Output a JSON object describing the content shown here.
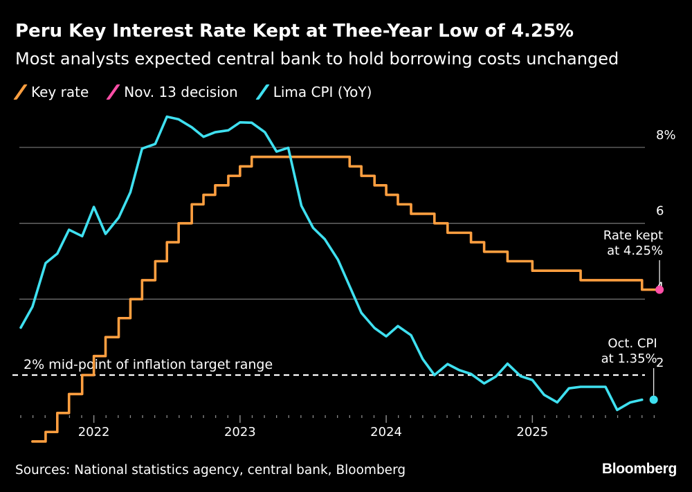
{
  "title": "Peru Key Interest Rate Kept at Thee-Year Low of 4.25%",
  "subtitle": "Most analysts expected central bank to hold borrowing costs unchanged",
  "source": "Sources: National statistics agency, central bank, Bloomberg",
  "brand": "Bloomberg",
  "colors": {
    "key_rate": "#ff9f40",
    "decision": "#ff4fa7",
    "cpi": "#3fe0f0",
    "grid": "#6e6e6e",
    "target_line": "#ffffff"
  },
  "chart_data": {
    "type": "line",
    "xlim": [
      2021.5,
      2025.95
    ],
    "ylim": [
      0.6,
      8.9
    ],
    "y_ticks": [
      {
        "value": 8,
        "label": "8%"
      },
      {
        "value": 6,
        "label": "6"
      },
      {
        "value": 4,
        "label": "4"
      },
      {
        "value": 2,
        "label": "2"
      }
    ],
    "x_ticks": [
      {
        "value": 2022,
        "label": "2022"
      },
      {
        "value": 2023,
        "label": "2023"
      },
      {
        "value": 2024,
        "label": "2024"
      },
      {
        "value": 2025,
        "label": "2025"
      }
    ],
    "series": [
      {
        "name": "Key rate",
        "color": "#ff9f40",
        "step": true,
        "points": [
          [
            2021.58,
            0.25
          ],
          [
            2021.67,
            0.5
          ],
          [
            2021.75,
            1.0
          ],
          [
            2021.83,
            1.5
          ],
          [
            2021.92,
            2.0
          ],
          [
            2022.0,
            2.5
          ],
          [
            2022.08,
            3.0
          ],
          [
            2022.17,
            3.5
          ],
          [
            2022.25,
            4.0
          ],
          [
            2022.33,
            4.5
          ],
          [
            2022.42,
            5.0
          ],
          [
            2022.5,
            5.5
          ],
          [
            2022.58,
            6.0
          ],
          [
            2022.67,
            6.5
          ],
          [
            2022.75,
            6.75
          ],
          [
            2022.83,
            7.0
          ],
          [
            2022.92,
            7.25
          ],
          [
            2023.0,
            7.5
          ],
          [
            2023.08,
            7.75
          ],
          [
            2023.17,
            7.75
          ],
          [
            2023.67,
            7.75
          ],
          [
            2023.75,
            7.5
          ],
          [
            2023.83,
            7.25
          ],
          [
            2023.92,
            7.0
          ],
          [
            2024.0,
            6.75
          ],
          [
            2024.08,
            6.5
          ],
          [
            2024.17,
            6.25
          ],
          [
            2024.33,
            6.0
          ],
          [
            2024.42,
            5.75
          ],
          [
            2024.58,
            5.5
          ],
          [
            2024.67,
            5.25
          ],
          [
            2024.83,
            5.0
          ],
          [
            2025.0,
            4.75
          ],
          [
            2025.33,
            4.5
          ],
          [
            2025.75,
            4.25
          ],
          [
            2025.87,
            4.25
          ]
        ]
      },
      {
        "name": "Lima CPI (YoY)",
        "color": "#3fe0f0",
        "step": false,
        "points": [
          [
            2021.5,
            3.25
          ],
          [
            2021.58,
            3.8
          ],
          [
            2021.67,
            4.95
          ],
          [
            2021.75,
            5.2
          ],
          [
            2021.83,
            5.83
          ],
          [
            2021.92,
            5.66
          ],
          [
            2022.0,
            6.43
          ],
          [
            2022.08,
            5.72
          ],
          [
            2022.17,
            6.15
          ],
          [
            2022.25,
            6.82
          ],
          [
            2022.33,
            7.97
          ],
          [
            2022.42,
            8.09
          ],
          [
            2022.5,
            8.81
          ],
          [
            2022.58,
            8.74
          ],
          [
            2022.67,
            8.53
          ],
          [
            2022.75,
            8.28
          ],
          [
            2022.83,
            8.4
          ],
          [
            2022.92,
            8.45
          ],
          [
            2023.0,
            8.66
          ],
          [
            2023.08,
            8.65
          ],
          [
            2023.17,
            8.4
          ],
          [
            2023.25,
            7.89
          ],
          [
            2023.33,
            7.99
          ],
          [
            2023.42,
            6.46
          ],
          [
            2023.5,
            5.88
          ],
          [
            2023.58,
            5.58
          ],
          [
            2023.67,
            5.04
          ],
          [
            2023.75,
            4.34
          ],
          [
            2023.83,
            3.64
          ],
          [
            2023.92,
            3.24
          ],
          [
            2024.0,
            3.02
          ],
          [
            2024.08,
            3.29
          ],
          [
            2024.17,
            3.05
          ],
          [
            2024.25,
            2.42
          ],
          [
            2024.33,
            2.0
          ],
          [
            2024.42,
            2.29
          ],
          [
            2024.5,
            2.13
          ],
          [
            2024.58,
            2.03
          ],
          [
            2024.67,
            1.78
          ],
          [
            2024.75,
            1.96
          ],
          [
            2024.83,
            2.3
          ],
          [
            2024.92,
            1.97
          ],
          [
            2025.0,
            1.87
          ],
          [
            2025.08,
            1.48
          ],
          [
            2025.17,
            1.28
          ],
          [
            2025.25,
            1.65
          ],
          [
            2025.33,
            1.69
          ],
          [
            2025.42,
            1.69
          ],
          [
            2025.5,
            1.69
          ],
          [
            2025.58,
            1.08
          ],
          [
            2025.67,
            1.28
          ],
          [
            2025.75,
            1.35
          ]
        ]
      }
    ],
    "legend": [
      {
        "label": "Key rate",
        "color": "#ff9f40"
      },
      {
        "label": "Nov. 13 decision",
        "color": "#ff4fa7"
      },
      {
        "label": "Lima CPI (YoY)",
        "color": "#3fe0f0"
      }
    ],
    "reference_line": {
      "value": 2,
      "label": "2% mid-point of inflation target range"
    },
    "annotations": [
      {
        "id": "rate",
        "x": 2025.87,
        "y": 4.25,
        "lines": [
          "Rate kept",
          "at 4.25%"
        ],
        "color": "#ff4fa7"
      },
      {
        "id": "cpi",
        "x": 2025.83,
        "y": 1.35,
        "lines": [
          "Oct. CPI",
          "at 1.35%"
        ],
        "color": "#3fe0f0"
      }
    ]
  }
}
